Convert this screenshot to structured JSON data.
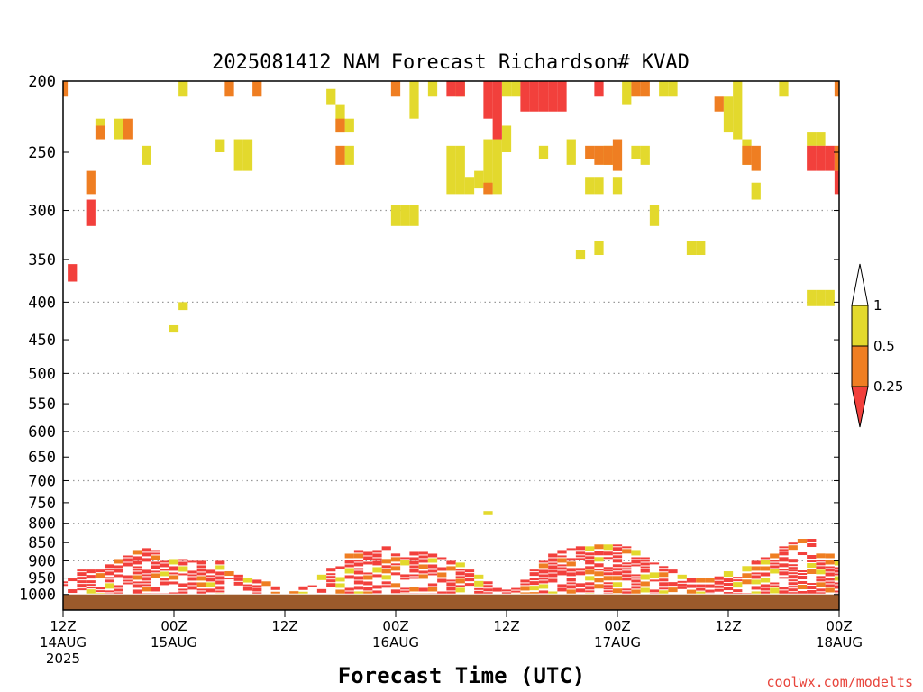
{
  "chart_data": {
    "type": "heatmap",
    "title": "2025081412 NAM Forecast Richardson# KVAD",
    "xlabel": "Forecast Time (UTC)",
    "credit": "coolwx.com/modelts",
    "y_axis": {
      "unit": "hPa",
      "reversed": true,
      "scale": "log",
      "range": [
        200,
        1050
      ],
      "ticks": [
        200,
        250,
        300,
        350,
        400,
        450,
        500,
        550,
        600,
        650,
        700,
        750,
        800,
        850,
        900,
        950,
        1000
      ],
      "gridlines": [
        300,
        400,
        500,
        600,
        700,
        800,
        900
      ]
    },
    "x_axis": {
      "range_hours": [
        0,
        84
      ],
      "ticks": [
        {
          "hour": 0,
          "line1": "12Z",
          "line2": "14AUG",
          "line3": "2025"
        },
        {
          "hour": 12,
          "line1": "00Z",
          "line2": "15AUG",
          "line3": ""
        },
        {
          "hour": 24,
          "line1": "12Z",
          "line2": "",
          "line3": ""
        },
        {
          "hour": 36,
          "line1": "00Z",
          "line2": "16AUG",
          "line3": ""
        },
        {
          "hour": 48,
          "line1": "12Z",
          "line2": "",
          "line3": ""
        },
        {
          "hour": 60,
          "line1": "00Z",
          "line2": "17AUG",
          "line3": ""
        },
        {
          "hour": 72,
          "line1": "12Z",
          "line2": "",
          "line3": ""
        },
        {
          "hour": 84,
          "line1": "00Z",
          "line2": "18AUG",
          "line3": ""
        }
      ]
    },
    "legend": {
      "placement": "right",
      "labels": [
        "1",
        "0.5",
        "0.25"
      ],
      "colors": {
        "over_1": "#ffffff",
        "0.5-1": "#e3d92d",
        "0.25-0.5": "#ef7e22",
        "under_0.25": "#f2403c"
      }
    },
    "ground": {
      "color": "#9b5a2b",
      "pressure": 1000
    },
    "series": [
      {
        "category": "0.5-1",
        "color": "#e3d92d",
        "cells": [
          [
            4,
            225,
            230
          ],
          [
            6,
            225,
            240
          ],
          [
            9,
            245,
            260
          ],
          [
            13,
            200,
            210
          ],
          [
            12,
            430,
            440
          ],
          [
            13,
            400,
            410
          ],
          [
            17,
            240,
            250
          ],
          [
            19,
            240,
            265
          ],
          [
            20,
            240,
            265
          ],
          [
            29,
            205,
            215
          ],
          [
            30,
            215,
            235
          ],
          [
            31,
            225,
            235
          ],
          [
            31,
            245,
            260
          ],
          [
            36,
            295,
            315
          ],
          [
            37,
            295,
            315
          ],
          [
            38,
            295,
            315
          ],
          [
            38,
            200,
            225
          ],
          [
            40,
            200,
            210
          ],
          [
            42,
            245,
            285
          ],
          [
            43,
            245,
            285
          ],
          [
            43,
            200,
            210
          ],
          [
            44,
            270,
            285
          ],
          [
            45,
            265,
            280
          ],
          [
            46,
            240,
            285
          ],
          [
            47,
            240,
            285
          ],
          [
            48,
            200,
            210
          ],
          [
            48,
            230,
            250
          ],
          [
            49,
            200,
            210
          ],
          [
            52,
            245,
            255
          ],
          [
            55,
            240,
            260
          ],
          [
            56,
            340,
            350
          ],
          [
            57,
            270,
            285
          ],
          [
            58,
            330,
            345
          ],
          [
            58,
            270,
            285
          ],
          [
            59,
            245,
            260
          ],
          [
            60,
            270,
            285
          ],
          [
            61,
            200,
            215
          ],
          [
            62,
            245,
            255
          ],
          [
            63,
            245,
            260
          ],
          [
            64,
            295,
            315
          ],
          [
            65,
            200,
            210
          ],
          [
            66,
            200,
            210
          ],
          [
            68,
            330,
            345
          ],
          [
            69,
            330,
            345
          ],
          [
            72,
            210,
            235
          ],
          [
            73,
            200,
            240
          ],
          [
            74,
            240,
            260
          ],
          [
            75,
            275,
            290
          ],
          [
            78,
            200,
            210
          ],
          [
            81,
            235,
            245
          ],
          [
            82,
            235,
            245
          ],
          [
            81,
            385,
            405
          ],
          [
            82,
            385,
            405
          ],
          [
            83,
            385,
            405
          ],
          [
            46,
            770,
            780
          ]
        ]
      },
      {
        "category": "0.25-0.5",
        "color": "#ef7e22",
        "cells": [
          [
            0,
            200,
            210
          ],
          [
            3,
            265,
            285
          ],
          [
            4,
            230,
            240
          ],
          [
            7,
            225,
            240
          ],
          [
            18,
            200,
            210
          ],
          [
            21,
            200,
            210
          ],
          [
            30,
            225,
            235
          ],
          [
            30,
            245,
            260
          ],
          [
            36,
            200,
            210
          ],
          [
            46,
            275,
            285
          ],
          [
            57,
            245,
            255
          ],
          [
            58,
            245,
            260
          ],
          [
            59,
            245,
            260
          ],
          [
            60,
            240,
            265
          ],
          [
            62,
            200,
            210
          ],
          [
            63,
            200,
            210
          ],
          [
            71,
            210,
            220
          ],
          [
            74,
            245,
            260
          ],
          [
            75,
            245,
            265
          ],
          [
            84,
            200,
            210
          ],
          [
            84,
            245,
            265
          ]
        ]
      },
      {
        "category": "under_0.25",
        "color": "#f2403c",
        "cells": [
          [
            1,
            355,
            375
          ],
          [
            3,
            290,
            315
          ],
          [
            42,
            200,
            210
          ],
          [
            43,
            200,
            210
          ],
          [
            46,
            200,
            225
          ],
          [
            47,
            200,
            240
          ],
          [
            50,
            200,
            220
          ],
          [
            51,
            200,
            220
          ],
          [
            52,
            200,
            220
          ],
          [
            53,
            200,
            220
          ],
          [
            54,
            200,
            220
          ],
          [
            58,
            200,
            210
          ],
          [
            81,
            245,
            265
          ],
          [
            82,
            245,
            265
          ],
          [
            83,
            245,
            265
          ],
          [
            84,
            265,
            285
          ]
        ]
      }
    ],
    "boundary_layer": {
      "top_profile_hpa": [
        [
          0,
          960
        ],
        [
          1,
          930
        ],
        [
          2,
          925
        ],
        [
          3,
          925
        ],
        [
          4,
          925
        ],
        [
          5,
          910
        ],
        [
          6,
          895
        ],
        [
          7,
          885
        ],
        [
          8,
          870
        ],
        [
          9,
          865
        ],
        [
          10,
          870
        ],
        [
          11,
          900
        ],
        [
          12,
          895
        ],
        [
          13,
          895
        ],
        [
          14,
          900
        ],
        [
          15,
          900
        ],
        [
          16,
          905
        ],
        [
          17,
          900
        ],
        [
          18,
          930
        ],
        [
          19,
          940
        ],
        [
          20,
          950
        ],
        [
          21,
          955
        ],
        [
          22,
          960
        ],
        [
          23,
          975
        ],
        [
          24,
          985
        ],
        [
          25,
          990
        ],
        [
          26,
          975
        ],
        [
          27,
          950
        ],
        [
          28,
          940
        ],
        [
          29,
          920
        ],
        [
          30,
          895
        ],
        [
          31,
          880
        ],
        [
          32,
          870
        ],
        [
          33,
          875
        ],
        [
          34,
          870
        ],
        [
          35,
          860
        ],
        [
          36,
          860
        ],
        [
          37,
          870
        ],
        [
          38,
          875
        ],
        [
          39,
          875
        ],
        [
          40,
          880
        ],
        [
          41,
          890
        ],
        [
          42,
          900
        ],
        [
          43,
          905
        ],
        [
          44,
          925
        ],
        [
          45,
          940
        ],
        [
          46,
          960
        ],
        [
          47,
          980
        ],
        [
          48,
          985
        ],
        [
          49,
          980
        ],
        [
          50,
          955
        ],
        [
          51,
          925
        ],
        [
          52,
          900
        ],
        [
          53,
          880
        ],
        [
          54,
          870
        ],
        [
          55,
          865
        ],
        [
          56,
          860
        ],
        [
          57,
          860
        ],
        [
          58,
          855
        ],
        [
          59,
          855
        ],
        [
          60,
          855
        ],
        [
          61,
          860
        ],
        [
          62,
          870
        ],
        [
          63,
          890
        ],
        [
          64,
          905
        ],
        [
          65,
          915
        ],
        [
          66,
          925
        ],
        [
          67,
          940
        ],
        [
          68,
          950
        ],
        [
          69,
          950
        ],
        [
          70,
          950
        ],
        [
          71,
          945
        ],
        [
          72,
          930
        ],
        [
          73,
          925
        ],
        [
          74,
          915
        ],
        [
          75,
          900
        ],
        [
          76,
          890
        ],
        [
          77,
          880
        ],
        [
          78,
          860
        ],
        [
          79,
          850
        ],
        [
          80,
          840
        ],
        [
          81,
          840
        ],
        [
          82,
          860
        ],
        [
          83,
          880
        ],
        [
          84,
          880
        ]
      ]
    }
  }
}
